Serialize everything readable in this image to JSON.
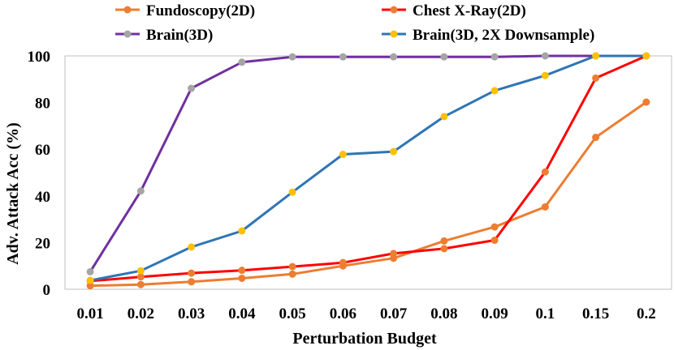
{
  "chart_data": {
    "type": "line",
    "title": "",
    "xlabel": "Perturbation Budget",
    "ylabel": "Adv. Attack Acc (%)",
    "categories": [
      "0.01",
      "0.02",
      "0.03",
      "0.04",
      "0.05",
      "0.06",
      "0.07",
      "0.08",
      "0.09",
      "0.1",
      "0.15",
      "0.2"
    ],
    "ylim": [
      0,
      100
    ],
    "yticks": [
      "0",
      "20",
      "40",
      "60",
      "80",
      "100"
    ],
    "grid": false,
    "legend_position": "top",
    "series": [
      {
        "name": "Fundoscopy(2D)",
        "line_color": "#ED7D31",
        "marker_color": "#ED7D31",
        "values": [
          1.5,
          2.0,
          3.2,
          4.7,
          6.5,
          10.0,
          13.3,
          20.7,
          26.7,
          35.3,
          65.1,
          80.2
        ]
      },
      {
        "name": "Chest X-Ray(2D)",
        "line_color": "#FF0000",
        "marker_color": "#ED7D31",
        "values": [
          3.5,
          5.3,
          6.9,
          8.1,
          9.7,
          11.4,
          15.3,
          17.4,
          21.0,
          50.3,
          90.5,
          100.0
        ]
      },
      {
        "name": "Brain(3D)",
        "line_color": "#7030A0",
        "marker_color": "#A5A5A5",
        "values": [
          7.5,
          42.1,
          86.1,
          97.3,
          99.6,
          99.6,
          99.6,
          99.6,
          99.6,
          100.0,
          100.0,
          100.0
        ]
      },
      {
        "name": "Brain(3D, 2X Downsample)",
        "line_color": "#2E75B6",
        "marker_color": "#FFC000",
        "values": [
          3.8,
          7.9,
          18.1,
          25.0,
          41.6,
          57.8,
          59.0,
          74.0,
          85.1,
          91.6,
          100.0,
          100.0
        ]
      }
    ]
  }
}
